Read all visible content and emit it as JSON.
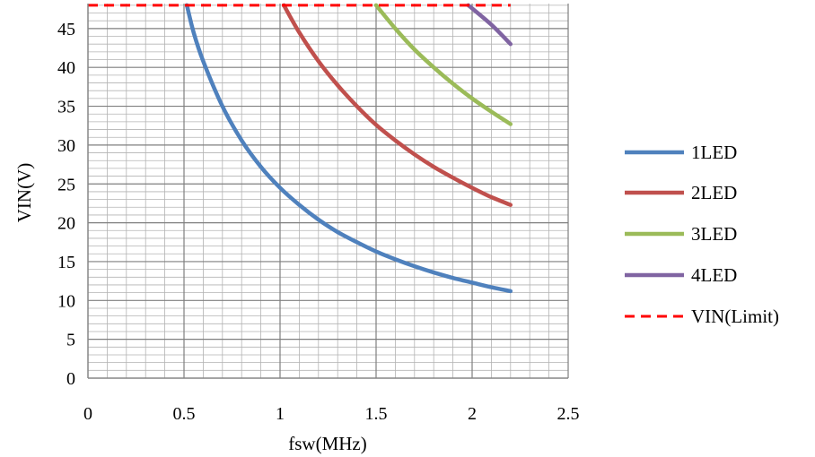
{
  "chart_data": {
    "type": "line",
    "xlabel": "fsw(MHz)",
    "ylabel": "VIN(V)",
    "xlim": [
      0,
      2.5
    ],
    "ylim": [
      0,
      48
    ],
    "x_ticks": [
      "0",
      "0.5",
      "1",
      "1.5",
      "2",
      "2.5"
    ],
    "y_ticks": [
      "0",
      "5",
      "10",
      "15",
      "20",
      "25",
      "30",
      "35",
      "40",
      "45"
    ],
    "grid": true,
    "legend_position": "right",
    "series": [
      {
        "name": "1LED",
        "color": "#4f81bd",
        "x": [
          0.515,
          0.55,
          0.6,
          0.7,
          0.8,
          0.9,
          1.0,
          1.1,
          1.2,
          1.3,
          1.4,
          1.5,
          1.6,
          1.7,
          1.8,
          1.9,
          2.0,
          2.1,
          2.2
        ],
        "y": [
          48,
          44.5,
          40.8,
          35.0,
          30.6,
          27.2,
          24.5,
          22.3,
          20.4,
          18.8,
          17.5,
          16.3,
          15.3,
          14.4,
          13.6,
          12.9,
          12.3,
          11.7,
          11.2
        ]
      },
      {
        "name": "2LED",
        "color": "#c0504d",
        "x": [
          1.02,
          1.1,
          1.2,
          1.3,
          1.4,
          1.5,
          1.6,
          1.7,
          1.8,
          1.9,
          2.0,
          2.1,
          2.2
        ],
        "y": [
          48,
          44.5,
          40.8,
          37.7,
          35.0,
          32.6,
          30.6,
          28.8,
          27.2,
          25.8,
          24.5,
          23.3,
          22.3
        ]
      },
      {
        "name": "3LED",
        "color": "#9bbb59",
        "x": [
          1.5,
          1.6,
          1.7,
          1.8,
          1.9,
          2.0,
          2.1,
          2.2
        ],
        "y": [
          48,
          45.0,
          42.3,
          40.0,
          37.9,
          36.0,
          34.3,
          32.7
        ]
      },
      {
        "name": "4LED",
        "color": "#8064a2",
        "x": [
          1.98,
          2.1,
          2.2
        ],
        "y": [
          48,
          45.5,
          43.0
        ]
      },
      {
        "name": "VIN(Limit)",
        "color": "#ff0000",
        "dashed": true,
        "x": [
          0,
          2.2
        ],
        "y": [
          48,
          48
        ]
      }
    ]
  }
}
